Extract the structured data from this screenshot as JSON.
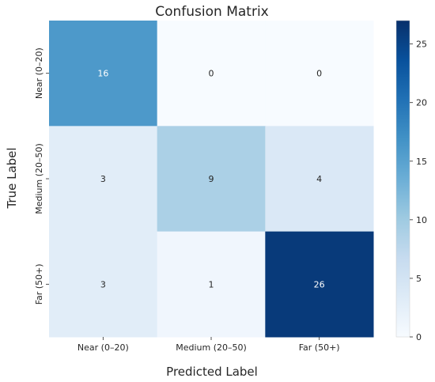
{
  "chart_data": {
    "type": "heatmap",
    "title": "Confusion Matrix",
    "xlabel": "Predicted Label",
    "ylabel": "True Label",
    "x_categories": [
      "Near (0–20)",
      "Medium (20–50)",
      "Far (50+)"
    ],
    "y_categories": [
      "Near (0–20)",
      "Medium (20–50)",
      "Far (50+)"
    ],
    "values": [
      [
        16,
        0,
        0
      ],
      [
        3,
        9,
        4
      ],
      [
        3,
        1,
        26
      ]
    ],
    "colorbar": {
      "colormap": "Blues",
      "range": [
        0,
        27
      ],
      "ticks": [
        0,
        5,
        10,
        15,
        20,
        25
      ],
      "tick_labels": [
        "0",
        "5",
        "10",
        "15",
        "20",
        "25"
      ]
    },
    "colors": {
      "low": "#f7fbff",
      "high": "#08306b",
      "text_dark": "#262626",
      "text_light": "#ffffff"
    }
  }
}
